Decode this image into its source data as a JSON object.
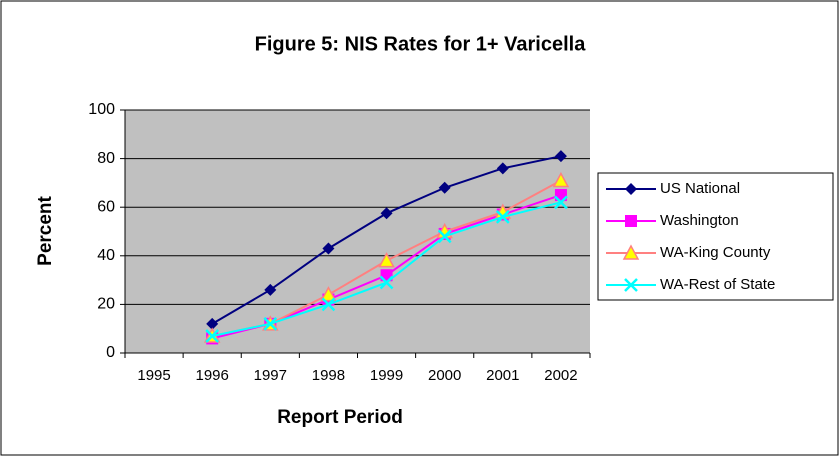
{
  "chart_data": {
    "type": "line",
    "title": "Figure 5: NIS Rates for 1+ Varicella",
    "x_label": "Report Period",
    "y_label": "Percent",
    "categories": [
      "1995",
      "1996",
      "1997",
      "1998",
      "1999",
      "2000",
      "2001",
      "2002"
    ],
    "series": [
      {
        "name": "US National",
        "color": "#000080",
        "marker": "diamond",
        "values": [
          null,
          12,
          26,
          43,
          57.5,
          68,
          76,
          81
        ]
      },
      {
        "name": "Washington",
        "color": "#ff00ff",
        "marker": "square",
        "values": [
          null,
          6,
          12,
          22,
          32,
          49,
          57,
          65
        ]
      },
      {
        "name": "WA-King County",
        "color": "#ff8080",
        "marker": "triangle",
        "values": [
          null,
          7,
          12,
          24,
          38,
          50,
          58,
          71
        ]
      },
      {
        "name": "WA-Rest of State",
        "color": "#00ffff",
        "marker": "x",
        "values": [
          null,
          7,
          12,
          20,
          29,
          48,
          56,
          62
        ]
      }
    ],
    "ylim": [
      0,
      100
    ],
    "yticks": [
      0,
      20,
      40,
      60,
      80,
      100
    ],
    "grid": true,
    "legend": "right"
  }
}
